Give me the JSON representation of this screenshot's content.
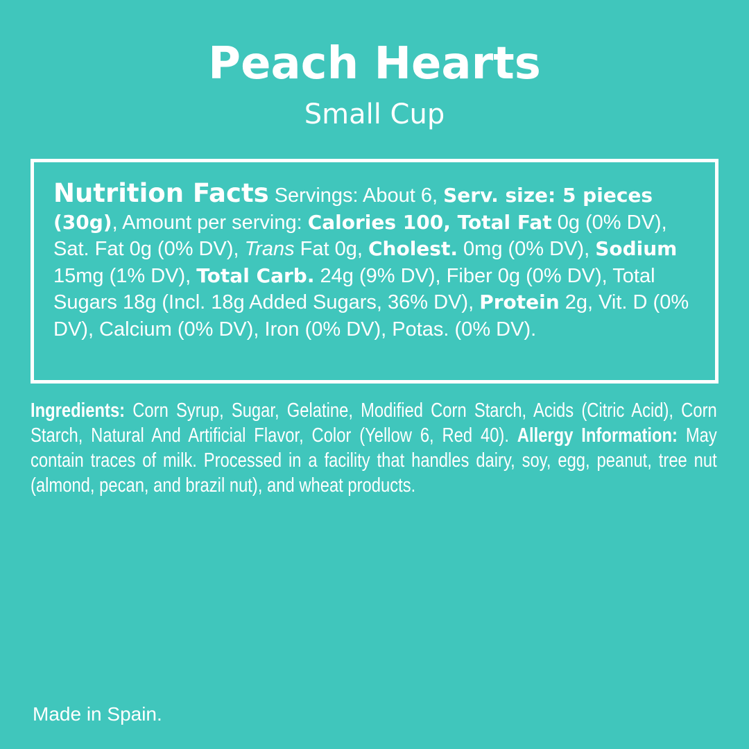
{
  "colors": {
    "background": "#40c6bc",
    "text": "#ffffff"
  },
  "product": {
    "name": "Peach Hearts",
    "size": "Small Cup"
  },
  "nutrition_segments": [
    {
      "text": "Nutrition Facts",
      "style": "h"
    },
    {
      "text": " Servings: About 6, ",
      "style": ""
    },
    {
      "text": "Serv. size: 5 pieces (30g)",
      "style": "b"
    },
    {
      "text": ", Amount per serving: ",
      "style": ""
    },
    {
      "text": "Calories 100, Total Fat",
      "style": "b"
    },
    {
      "text": " 0g (0% DV), Sat. Fat 0g (0% DV), ",
      "style": ""
    },
    {
      "text": "Trans",
      "style": "i"
    },
    {
      "text": " Fat 0g, ",
      "style": ""
    },
    {
      "text": "Cholest.",
      "style": "b"
    },
    {
      "text": " 0mg (0% DV), ",
      "style": ""
    },
    {
      "text": "Sodium",
      "style": "b"
    },
    {
      "text": " 15mg (1% DV), ",
      "style": ""
    },
    {
      "text": "Total Carb.",
      "style": "b"
    },
    {
      "text": " 24g (9% DV), Fiber 0g (0% DV), Total Sugars 18g (Incl. 18g Added Sugars, 36% DV), ",
      "style": ""
    },
    {
      "text": "Protein",
      "style": "b"
    },
    {
      "text": " 2g, Vit. D (0% DV), Calcium (0% DV), Iron (0% DV), Potas. (0% DV).",
      "style": ""
    }
  ],
  "ingredients": {
    "label": "Ingredients:",
    "text": " Corn Syrup, Sugar, Gelatine, Modified Corn Starch, Acids (Citric Acid), Corn Starch, Natural And Artificial Flavor, Color (Yellow 6, Red 40). ",
    "allergy_label": "Allergy Information:",
    "allergy_text": " May contain traces of milk. Processed in a facility that handles dairy, soy, egg, peanut, tree nut (almond, pecan, and brazil nut), and wheat products."
  },
  "origin": "Made in Spain."
}
